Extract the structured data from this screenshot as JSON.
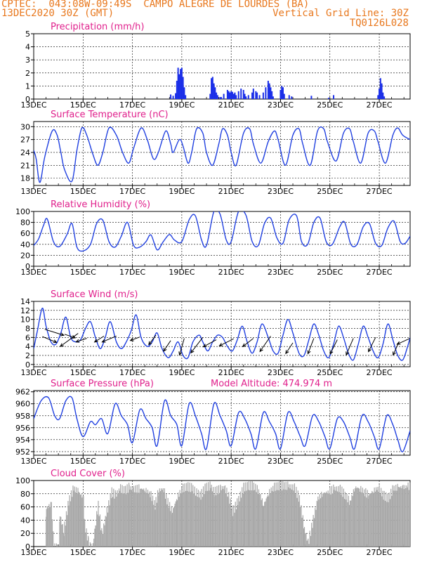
{
  "header": {
    "station_line": "CPTEC:  043:08W-09:49S  CAMPO ALEGRE DE LOURDES (BA)",
    "date_line": "13DEC2020 30Z (GMT)",
    "grid_note": "Vertical Grid Line: 30Z",
    "code": "TQ0126L028"
  },
  "colors": {
    "header": "#e8781e",
    "panel_title": "#e0208c",
    "series_line": "#2040e0",
    "precip_bar": "#1a2ee8",
    "cloud_fill": "#a9a9a9",
    "arrow": "#000000"
  },
  "chart_data": [
    {
      "id": "precip",
      "type": "bar",
      "title": "Precipitation (mm/h)",
      "ylim": [
        0,
        5
      ],
      "yticks": [
        0,
        1,
        2,
        3,
        4,
        5
      ],
      "xlim": [
        13.0,
        28.25
      ],
      "xticks": [
        13,
        15,
        17,
        19,
        21,
        23,
        25,
        27
      ],
      "xtick_labels": [
        "13DEC",
        "15DEC",
        "17DEC",
        "19DEC",
        "21DEC",
        "23DEC",
        "25DEC",
        "27DEC"
      ],
      "x": [
        18.55,
        18.65,
        18.75,
        18.8,
        18.85,
        18.9,
        18.95,
        19.0,
        19.05,
        19.1,
        19.15,
        20.15,
        20.2,
        20.25,
        20.3,
        20.35,
        20.4,
        20.45,
        20.55,
        20.6,
        20.7,
        20.85,
        20.9,
        20.95,
        21.0,
        21.05,
        21.1,
        21.15,
        21.2,
        21.3,
        21.4,
        21.5,
        21.55,
        21.6,
        21.7,
        21.85,
        21.9,
        22.0,
        22.05,
        22.15,
        22.3,
        22.4,
        22.5,
        22.55,
        22.6,
        22.65,
        22.7,
        23.0,
        23.05,
        23.1,
        23.15,
        23.35,
        23.45,
        24.25,
        24.95,
        25.15,
        26.95,
        27.0,
        27.05,
        27.1,
        27.15,
        27.2
      ],
      "values": [
        0.35,
        0.25,
        0.45,
        1.4,
        2.4,
        1.9,
        2.3,
        2.4,
        1.7,
        0.9,
        0.3,
        0.4,
        1.6,
        1.7,
        1.2,
        0.9,
        0.5,
        0.3,
        0.15,
        0.15,
        0.4,
        0.7,
        0.6,
        0.5,
        0.6,
        0.55,
        0.4,
        0.5,
        0.3,
        0.6,
        0.8,
        0.7,
        0.4,
        0.2,
        0.3,
        0.5,
        0.8,
        0.6,
        0.5,
        0.3,
        0.5,
        0.9,
        1.4,
        1.2,
        0.9,
        0.6,
        0.2,
        0.7,
        1.0,
        0.9,
        0.4,
        0.3,
        0.2,
        0.25,
        0.1,
        0.3,
        0.3,
        0.8,
        1.6,
        1.2,
        0.5,
        0.2
      ]
    },
    {
      "id": "temp",
      "type": "line",
      "title": "Surface Temperature (nC)",
      "ylim": [
        16.3,
        31.2
      ],
      "yticks": [
        18,
        21,
        24,
        27,
        30
      ],
      "xlim": [
        13.0,
        28.25
      ],
      "xticks": [
        13,
        15,
        17,
        19,
        21,
        23,
        25,
        27
      ],
      "xtick_labels": [
        "13DEC",
        "15DEC",
        "17DEC",
        "19DEC",
        "21DEC",
        "23DEC",
        "25DEC",
        "27DEC"
      ],
      "x": [
        13.0,
        13.1,
        13.25,
        13.45,
        13.75,
        13.95,
        14.1,
        14.25,
        14.55,
        14.75,
        14.95,
        15.15,
        15.4,
        15.6,
        15.8,
        16.05,
        16.35,
        16.6,
        16.85,
        17.05,
        17.35,
        17.6,
        17.85,
        18.05,
        18.35,
        18.55,
        18.65,
        18.9,
        19.05,
        19.25,
        19.4,
        19.6,
        19.85,
        20.0,
        20.25,
        20.5,
        20.65,
        20.85,
        21.0,
        21.2,
        21.5,
        21.75,
        21.9,
        22.2,
        22.5,
        22.75,
        22.9,
        23.2,
        23.5,
        23.75,
        23.9,
        24.2,
        24.5,
        24.75,
        24.9,
        25.25,
        25.55,
        25.8,
        25.95,
        26.25,
        26.55,
        26.8,
        26.95,
        27.25,
        27.55,
        27.75,
        27.95,
        28.25
      ],
      "series": [
        {
          "values": [
            24.5,
            22.5,
            17.0,
            23.0,
            29.0,
            28.0,
            24.0,
            20.0,
            17.3,
            24.5,
            29.7,
            28.0,
            23.5,
            21.0,
            24.0,
            29.7,
            28.0,
            24.0,
            21.5,
            25.0,
            29.7,
            27.0,
            22.5,
            24.0,
            29.0,
            26.0,
            24.0,
            27.0,
            25.5,
            21.5,
            24.0,
            29.5,
            28.5,
            24.0,
            21.0,
            26.0,
            29.5,
            28.0,
            24.0,
            21.0,
            28.5,
            29.5,
            26.0,
            21.5,
            26.5,
            29.0,
            27.0,
            21.0,
            28.0,
            29.5,
            26.0,
            21.0,
            29.0,
            29.5,
            26.5,
            22.0,
            28.5,
            29.5,
            26.5,
            21.5,
            28.5,
            29.0,
            26.5,
            21.5,
            28.0,
            29.7,
            28.0,
            27.0
          ]
        }
      ]
    },
    {
      "id": "rh",
      "type": "line",
      "title": "Relative Humidity (%)",
      "ylim": [
        0,
        100
      ],
      "yticks": [
        0,
        20,
        40,
        60,
        80,
        100
      ],
      "xlim": [
        13.0,
        28.25
      ],
      "xticks": [
        13,
        15,
        17,
        19,
        21,
        23,
        25,
        27
      ],
      "xtick_labels": [
        "13DEC",
        "15DEC",
        "17DEC",
        "19DEC",
        "21DEC",
        "23DEC",
        "25DEC",
        "27DEC"
      ],
      "x": [
        13.0,
        13.2,
        13.4,
        13.55,
        13.8,
        14.05,
        14.35,
        14.55,
        14.75,
        15.0,
        15.3,
        15.55,
        15.8,
        16.05,
        16.3,
        16.55,
        16.8,
        17.05,
        17.3,
        17.55,
        17.75,
        18.0,
        18.25,
        18.5,
        18.7,
        19.0,
        19.3,
        19.55,
        19.8,
        20.0,
        20.3,
        20.55,
        20.8,
        21.0,
        21.3,
        21.6,
        21.85,
        22.1,
        22.35,
        22.6,
        22.85,
        23.1,
        23.35,
        23.65,
        23.85,
        24.1,
        24.35,
        24.6,
        24.85,
        25.1,
        25.4,
        25.6,
        25.85,
        26.1,
        26.35,
        26.6,
        26.85,
        27.1,
        27.35,
        27.6,
        27.85,
        28.05,
        28.25
      ],
      "series": [
        {
          "values": [
            38,
            50,
            75,
            86,
            45,
            36,
            58,
            78,
            35,
            28,
            40,
            78,
            84,
            45,
            35,
            55,
            80,
            38,
            35,
            45,
            57,
            30,
            45,
            58,
            48,
            45,
            85,
            92,
            48,
            38,
            100,
            95,
            48,
            45,
            100,
            93,
            45,
            38,
            78,
            88,
            52,
            42,
            85,
            92,
            45,
            40,
            80,
            88,
            45,
            40,
            72,
            80,
            40,
            40,
            72,
            78,
            42,
            38,
            70,
            82,
            45,
            42,
            55
          ]
        }
      ]
    },
    {
      "id": "wind",
      "type": "line",
      "title": "Surface Wind (m/s)",
      "ylim": [
        -0.5,
        14
      ],
      "yticks": [
        0,
        2,
        4,
        6,
        8,
        10,
        12,
        14
      ],
      "xlim": [
        13.0,
        28.25
      ],
      "xticks": [
        13,
        15,
        17,
        19,
        21,
        23,
        25,
        27
      ],
      "xtick_labels": [
        "13DEC",
        "15DEC",
        "17DEC",
        "19DEC",
        "21DEC",
        "23DEC",
        "25DEC",
        "27DEC"
      ],
      "x": [
        13.0,
        13.15,
        13.35,
        13.5,
        13.7,
        13.9,
        14.1,
        14.3,
        14.5,
        14.7,
        14.9,
        15.1,
        15.3,
        15.5,
        15.7,
        15.9,
        16.1,
        16.35,
        16.55,
        16.75,
        16.95,
        17.15,
        17.35,
        17.6,
        17.8,
        18.0,
        18.2,
        18.45,
        18.65,
        18.85,
        19.05,
        19.25,
        19.45,
        19.7,
        19.85,
        20.05,
        20.25,
        20.45,
        20.65,
        20.85,
        21.05,
        21.25,
        21.45,
        21.65,
        21.85,
        22.05,
        22.25,
        22.5,
        22.7,
        22.9,
        23.1,
        23.3,
        23.5,
        23.75,
        23.95,
        24.15,
        24.35,
        24.55,
        24.75,
        24.95,
        25.15,
        25.35,
        25.55,
        25.75,
        25.95,
        26.15,
        26.35,
        26.55,
        26.75,
        26.95,
        27.15,
        27.35,
        27.55,
        27.75,
        27.95,
        28.15,
        28.25
      ],
      "series": [
        {
          "values": [
            3.5,
            7.5,
            12.5,
            8.5,
            5.0,
            4.5,
            7.0,
            10.5,
            6.0,
            5.0,
            5.5,
            8.0,
            9.5,
            6.0,
            3.5,
            6.0,
            9.5,
            5.0,
            3.5,
            5.0,
            7.5,
            11.0,
            6.0,
            4.0,
            5.0,
            7.0,
            3.5,
            1.5,
            3.0,
            5.0,
            2.0,
            1.5,
            5.0,
            6.5,
            5.0,
            3.0,
            5.0,
            6.5,
            6.0,
            4.0,
            3.0,
            5.5,
            8.5,
            5.0,
            2.5,
            5.0,
            9.0,
            6.0,
            3.0,
            2.5,
            6.5,
            10.0,
            7.0,
            2.5,
            2.0,
            5.5,
            9.0,
            6.5,
            3.0,
            1.5,
            4.5,
            8.5,
            6.0,
            2.5,
            1.0,
            4.5,
            8.5,
            6.0,
            3.0,
            1.5,
            4.5,
            9.0,
            5.5,
            2.0,
            1.0,
            4.0,
            6.0
          ]
        }
      ],
      "arrows": [
        {
          "x": 13.45,
          "y": 7.8,
          "u": 1.6,
          "v": -0.5
        },
        {
          "x": 13.35,
          "y": 6.2,
          "u": 1.2,
          "v": -0.5
        },
        {
          "x": 14.25,
          "y": 6.7,
          "u": 0.9,
          "v": -0.3
        },
        {
          "x": 14.8,
          "y": 6.9,
          "u": -1.5,
          "v": -1.1
        },
        {
          "x": 15.15,
          "y": 5.8,
          "u": -0.9,
          "v": -0.3
        },
        {
          "x": 15.85,
          "y": 6.3,
          "u": -0.8,
          "v": -0.5
        },
        {
          "x": 16.35,
          "y": 6.3,
          "u": -1.2,
          "v": -0.5
        },
        {
          "x": 17.3,
          "y": 6.1,
          "u": -0.8,
          "v": -0.3
        },
        {
          "x": 17.95,
          "y": 6.5,
          "u": -0.6,
          "v": -0.8
        },
        {
          "x": 18.55,
          "y": 5.3,
          "u": -0.6,
          "v": -0.9
        },
        {
          "x": 19.1,
          "y": 5.8,
          "u": -0.4,
          "v": -1.4
        },
        {
          "x": 19.85,
          "y": 6.0,
          "u": -1.0,
          "v": -1.3
        },
        {
          "x": 20.4,
          "y": 5.5,
          "u": -1.1,
          "v": -0.6
        },
        {
          "x": 21.1,
          "y": 5.7,
          "u": -1.2,
          "v": -0.6
        },
        {
          "x": 21.9,
          "y": 5.8,
          "u": -0.9,
          "v": -0.7
        },
        {
          "x": 22.6,
          "y": 6.3,
          "u": -0.9,
          "v": -1.3
        },
        {
          "x": 23.5,
          "y": 4.8,
          "u": -0.6,
          "v": -0.9
        },
        {
          "x": 24.35,
          "y": 5.8,
          "u": -0.5,
          "v": -1.3
        },
        {
          "x": 25.3,
          "y": 5.5,
          "u": -0.6,
          "v": -1.2
        },
        {
          "x": 25.95,
          "y": 5.8,
          "u": -0.6,
          "v": -1.4
        },
        {
          "x": 26.85,
          "y": 6.0,
          "u": -0.6,
          "v": -1.2
        },
        {
          "x": 27.8,
          "y": 5.0,
          "u": -0.5,
          "v": -1.1
        },
        {
          "x": 28.25,
          "y": 5.8,
          "u": -1.1,
          "v": -0.5
        }
      ]
    },
    {
      "id": "pres",
      "type": "line",
      "title": "Surface Pressure (hPa)",
      "annotation": "Model Altitude: 474.974  m",
      "ylim": [
        951.4,
        962.2
      ],
      "yticks": [
        952,
        954,
        956,
        958,
        960,
        962
      ],
      "xlim": [
        13.0,
        28.25
      ],
      "xticks": [
        13,
        15,
        17,
        19,
        21,
        23,
        25,
        27
      ],
      "xtick_labels": [
        "13DEC",
        "15DEC",
        "17DEC",
        "19DEC",
        "21DEC",
        "23DEC",
        "25DEC",
        "27DEC"
      ],
      "x": [
        13.0,
        13.3,
        13.6,
        13.85,
        14.05,
        14.3,
        14.55,
        14.75,
        15.0,
        15.3,
        15.5,
        15.75,
        16.0,
        16.3,
        16.55,
        16.8,
        17.0,
        17.3,
        17.55,
        17.8,
        18.0,
        18.3,
        18.55,
        18.8,
        19.0,
        19.3,
        19.55,
        19.8,
        20.0,
        20.3,
        20.55,
        20.8,
        21.0,
        21.3,
        21.55,
        21.8,
        22.0,
        22.3,
        22.55,
        22.8,
        23.0,
        23.3,
        23.55,
        23.8,
        24.0,
        24.3,
        24.55,
        24.8,
        25.0,
        25.3,
        25.55,
        25.8,
        26.0,
        26.3,
        26.55,
        26.8,
        27.0,
        27.3,
        27.55,
        27.75,
        27.95,
        28.25
      ],
      "series": [
        {
          "values": [
            957.5,
            960.5,
            961.0,
            958.0,
            957.5,
            960.5,
            961.0,
            957.5,
            954.5,
            957.0,
            956.5,
            957.5,
            955.0,
            960.0,
            958.0,
            956.5,
            953.5,
            959.0,
            957.5,
            956.0,
            953.0,
            960.5,
            958.0,
            956.5,
            953.0,
            960.0,
            958.0,
            955.0,
            952.5,
            960.0,
            958.0,
            955.5,
            953.0,
            958.5,
            957.5,
            955.0,
            952.5,
            958.5,
            957.0,
            955.0,
            952.5,
            958.5,
            957.0,
            954.5,
            953.0,
            958.0,
            957.0,
            954.5,
            952.5,
            957.5,
            957.0,
            954.5,
            952.5,
            958.0,
            957.0,
            954.5,
            952.5,
            958.0,
            956.5,
            954.0,
            952.0,
            955.5
          ]
        }
      ]
    },
    {
      "id": "cloud",
      "type": "bar",
      "title": "Cloud Cover (%)",
      "ylim": [
        0,
        100
      ],
      "yticks": [
        0,
        20,
        40,
        60,
        80,
        100
      ],
      "xlim": [
        13.0,
        28.25
      ],
      "xticks": [
        13,
        15,
        17,
        19,
        21,
        23,
        25,
        27
      ],
      "xtick_labels": [
        "13DEC",
        "15DEC",
        "17DEC",
        "19DEC",
        "21DEC",
        "23DEC",
        "25DEC",
        "27DEC"
      ],
      "x": [
        13.0,
        13.45,
        13.5,
        13.7,
        13.8,
        14.0,
        14.05,
        14.2,
        14.4,
        14.6,
        14.8,
        15.0,
        15.05,
        15.2,
        15.35,
        15.5,
        15.6,
        15.75,
        15.95,
        16.15,
        16.3,
        16.5,
        16.7,
        16.85,
        17.0,
        17.3,
        17.5,
        17.7,
        17.9,
        18.05,
        18.25,
        18.35,
        18.6,
        18.8,
        19.0,
        19.2,
        19.4,
        19.55,
        19.75,
        19.95,
        20.15,
        20.3,
        20.55,
        20.7,
        20.85,
        21.05,
        21.25,
        21.5,
        21.7,
        21.9,
        22.1,
        22.3,
        22.5,
        22.7,
        22.9,
        23.1,
        23.3,
        23.55,
        23.75,
        23.95,
        24.1,
        24.35,
        24.5,
        24.7,
        24.95,
        25.15,
        25.4,
        25.6,
        25.8,
        26.0,
        26.2,
        26.4,
        26.55,
        26.75,
        26.95,
        27.15,
        27.35,
        27.55,
        27.75,
        27.95,
        28.15,
        28.25
      ],
      "values": [
        0,
        0,
        65,
        72,
        10,
        0,
        55,
        30,
        75,
        95,
        90,
        80,
        40,
        15,
        0,
        45,
        70,
        25,
        60,
        90,
        85,
        95,
        92,
        97,
        94,
        95,
        93,
        88,
        70,
        92,
        95,
        80,
        60,
        82,
        95,
        98,
        96,
        90,
        85,
        97,
        99,
        90,
        95,
        97,
        88,
        60,
        75,
        97,
        99,
        99,
        92,
        70,
        88,
        97,
        99,
        99,
        99,
        96,
        80,
        35,
        12,
        55,
        80,
        88,
        90,
        95,
        94,
        85,
        75,
        97,
        95,
        90,
        85,
        92,
        96,
        85,
        80,
        95,
        97,
        97,
        98,
        99
      ]
    }
  ]
}
